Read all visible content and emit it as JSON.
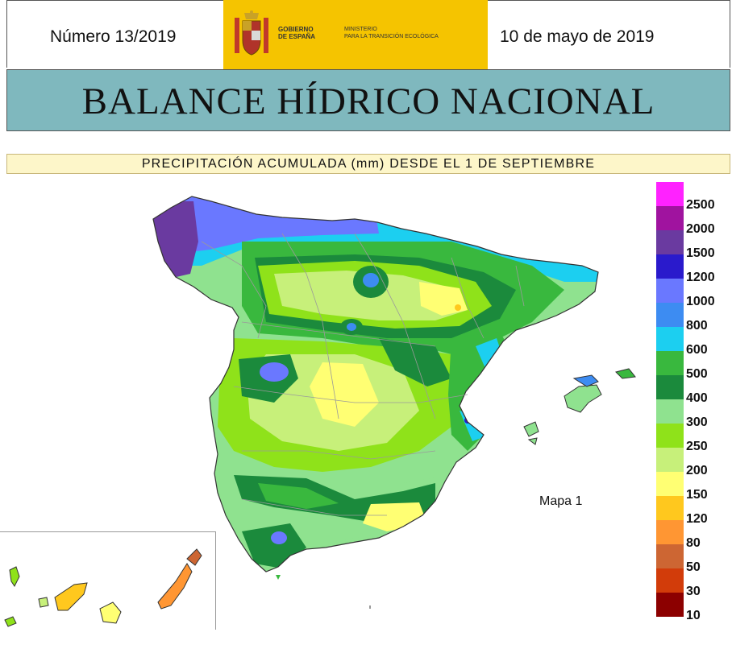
{
  "header": {
    "issue": "Número 13/2019",
    "date": "10 de mayo de 2019",
    "logo_gobierno": "GOBIERNO\nDE ESPAÑA",
    "logo_ministerio": "MINISTERIO\nPARA LA TRANSICIÓN ECOLÓGICA"
  },
  "title": "BALANCE HÍDRICO NACIONAL",
  "subtitle": "PRECIPITACIÓN ACUMULADA (mm) DESDE EL 1 DE SEPTIEMBRE",
  "map_label": "Mapa 1",
  "legend": {
    "items": [
      {
        "label": "2500",
        "color": "#ff22ff"
      },
      {
        "label": "2000",
        "color": "#a0139f"
      },
      {
        "label": "1500",
        "color": "#6a3aa0"
      },
      {
        "label": "1200",
        "color": "#2a1acc"
      },
      {
        "label": "1000",
        "color": "#6a78ff"
      },
      {
        "label": "800",
        "color": "#3d8cf2"
      },
      {
        "label": "600",
        "color": "#1ccff0"
      },
      {
        "label": "500",
        "color": "#39b83e"
      },
      {
        "label": "400",
        "color": "#1b8a3c"
      },
      {
        "label": "300",
        "color": "#8fe28f"
      },
      {
        "label": "250",
        "color": "#8fe21a"
      },
      {
        "label": "200",
        "color": "#c7f07a"
      },
      {
        "label": "150",
        "color": "#ffff73"
      },
      {
        "label": "120",
        "color": "#ffc81e"
      },
      {
        "label": "80",
        "color": "#ff9633"
      },
      {
        "label": "50",
        "color": "#cd6633"
      },
      {
        "label": "30",
        "color": "#d23c0a"
      },
      {
        "label": "10",
        "color": "#8c0000"
      }
    ],
    "extra_swatch_color": "#ff22ff"
  },
  "colors": {
    "logo_yellow": "#f5c400",
    "title_band": "#7fb8be",
    "subtitle_band": "#fdf6c9",
    "province_lines": "#9a9a9a"
  }
}
